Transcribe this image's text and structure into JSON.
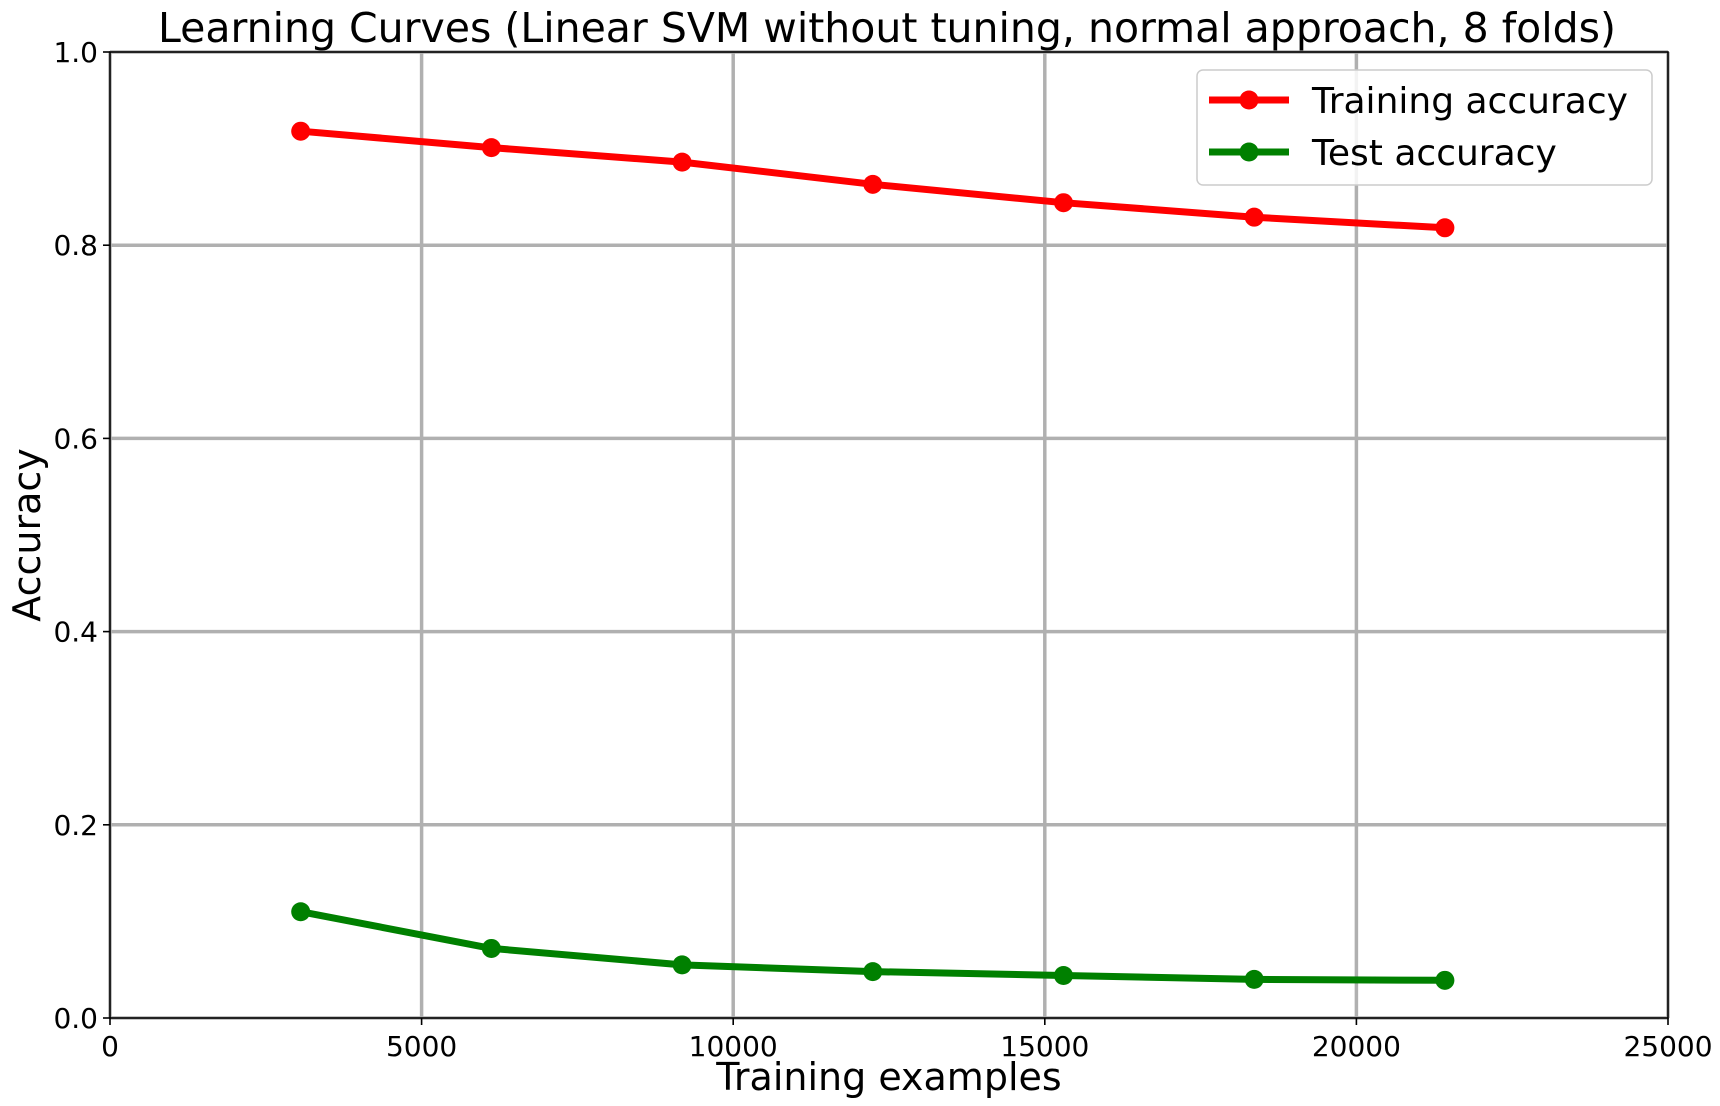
{
  "chart_data": {
    "type": "line",
    "title": "Learning Curves (Linear SVM without tuning, normal approach, 8 folds)",
    "xlabel": "Training examples",
    "ylabel": "Accuracy",
    "xlim": [
      0,
      25000
    ],
    "ylim": [
      0.0,
      1.0
    ],
    "x_ticks": [
      0,
      5000,
      10000,
      15000,
      20000,
      25000
    ],
    "x_tick_labels": [
      "0",
      "5000",
      "10000",
      "15000",
      "20000",
      "25000"
    ],
    "y_ticks": [
      0.0,
      0.2,
      0.4,
      0.6,
      0.8,
      1.0
    ],
    "y_tick_labels": [
      "0.0",
      "0.2",
      "0.4",
      "0.6",
      "0.8",
      "1.0"
    ],
    "grid": true,
    "legend_position": "top-right",
    "x": [
      3060,
      6120,
      9180,
      12240,
      15300,
      18360,
      21420
    ],
    "series": [
      {
        "name": "Training accuracy",
        "color": "#ff0000",
        "values": [
          0.918,
          0.901,
          0.886,
          0.863,
          0.844,
          0.829,
          0.818
        ]
      },
      {
        "name": "Test accuracy",
        "color": "#008000",
        "values": [
          0.11,
          0.072,
          0.055,
          0.048,
          0.044,
          0.04,
          0.039
        ]
      }
    ]
  }
}
